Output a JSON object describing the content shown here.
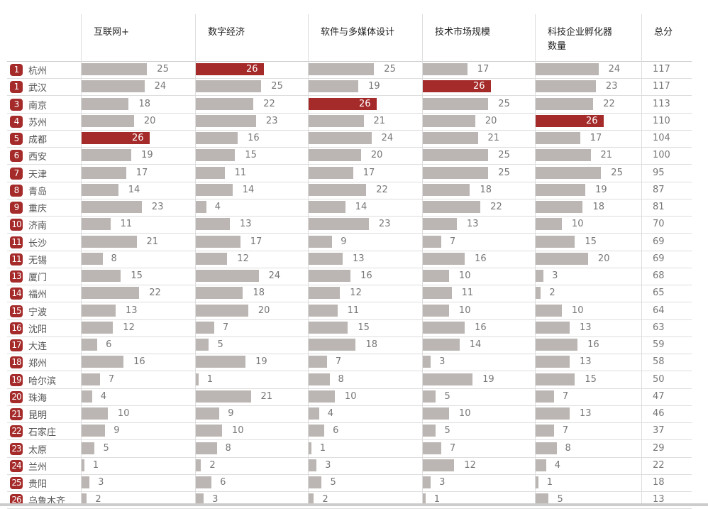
{
  "chart_data": {
    "type": "bar",
    "columns": [
      "互联网+",
      "数字经济",
      "软件与多媒体设计",
      "技术市场规模",
      "科技企业孵化器数量",
      "总分"
    ],
    "column_header_lines": [
      [
        "互联网+"
      ],
      [
        "数字经济"
      ],
      [
        "软件与多媒体设计"
      ],
      [
        "技术市场规模"
      ],
      [
        "科技企业孵化器",
        "数量"
      ],
      [
        "总分"
      ]
    ],
    "xlim": [
      0,
      26
    ],
    "highlight_color": "#a52a2a",
    "bar_color": "#bbb6b3",
    "rows": [
      {
        "rank": "1",
        "city": "杭州",
        "values": [
          25,
          26,
          25,
          17,
          24
        ],
        "total": 117
      },
      {
        "rank": "1",
        "city": "武汉",
        "values": [
          24,
          25,
          19,
          26,
          23
        ],
        "total": 117
      },
      {
        "rank": "3",
        "city": "南京",
        "values": [
          18,
          22,
          26,
          25,
          22
        ],
        "total": 113
      },
      {
        "rank": "4",
        "city": "苏州",
        "values": [
          20,
          23,
          21,
          20,
          26
        ],
        "total": 110
      },
      {
        "rank": "5",
        "city": "成都",
        "values": [
          26,
          16,
          24,
          21,
          17
        ],
        "total": 104
      },
      {
        "rank": "6",
        "city": "西安",
        "values": [
          19,
          15,
          20,
          25,
          21
        ],
        "total": 100
      },
      {
        "rank": "7",
        "city": "天津",
        "values": [
          17,
          11,
          17,
          25,
          25
        ],
        "total": 95
      },
      {
        "rank": "8",
        "city": "青岛",
        "values": [
          14,
          14,
          22,
          18,
          19
        ],
        "total": 87
      },
      {
        "rank": "9",
        "city": "重庆",
        "values": [
          23,
          4,
          14,
          22,
          18
        ],
        "total": 81
      },
      {
        "rank": "10",
        "city": "济南",
        "values": [
          11,
          13,
          23,
          13,
          10
        ],
        "total": 70
      },
      {
        "rank": "11",
        "city": "长沙",
        "values": [
          21,
          17,
          9,
          7,
          15
        ],
        "total": 69
      },
      {
        "rank": "11",
        "city": "无锡",
        "values": [
          8,
          12,
          13,
          16,
          20
        ],
        "total": 69
      },
      {
        "rank": "13",
        "city": "厦门",
        "values": [
          15,
          24,
          16,
          10,
          3
        ],
        "total": 68
      },
      {
        "rank": "14",
        "city": "福州",
        "values": [
          22,
          18,
          12,
          11,
          2
        ],
        "total": 65
      },
      {
        "rank": "15",
        "city": "宁波",
        "values": [
          13,
          20,
          11,
          10,
          10
        ],
        "total": 64
      },
      {
        "rank": "16",
        "city": "沈阳",
        "values": [
          12,
          7,
          15,
          16,
          13
        ],
        "total": 63
      },
      {
        "rank": "17",
        "city": "大连",
        "values": [
          6,
          5,
          18,
          14,
          16
        ],
        "total": 59
      },
      {
        "rank": "18",
        "city": "郑州",
        "values": [
          16,
          19,
          7,
          3,
          13
        ],
        "total": 58
      },
      {
        "rank": "19",
        "city": "哈尔滨",
        "values": [
          7,
          1,
          8,
          19,
          15
        ],
        "total": 50
      },
      {
        "rank": "20",
        "city": "珠海",
        "values": [
          4,
          21,
          10,
          5,
          7
        ],
        "total": 47
      },
      {
        "rank": "21",
        "city": "昆明",
        "values": [
          10,
          9,
          4,
          10,
          13
        ],
        "total": 46
      },
      {
        "rank": "22",
        "city": "石家庄",
        "values": [
          9,
          10,
          6,
          5,
          7
        ],
        "total": 37
      },
      {
        "rank": "23",
        "city": "太原",
        "values": [
          5,
          8,
          1,
          7,
          8
        ],
        "total": 29
      },
      {
        "rank": "24",
        "city": "兰州",
        "values": [
          1,
          2,
          3,
          12,
          4
        ],
        "total": 22
      },
      {
        "rank": "25",
        "city": "贵阳",
        "values": [
          3,
          6,
          5,
          3,
          1
        ],
        "total": 18
      },
      {
        "rank": "26",
        "city": "乌鲁木齐",
        "values": [
          2,
          3,
          2,
          1,
          5
        ],
        "total": 13
      }
    ]
  }
}
